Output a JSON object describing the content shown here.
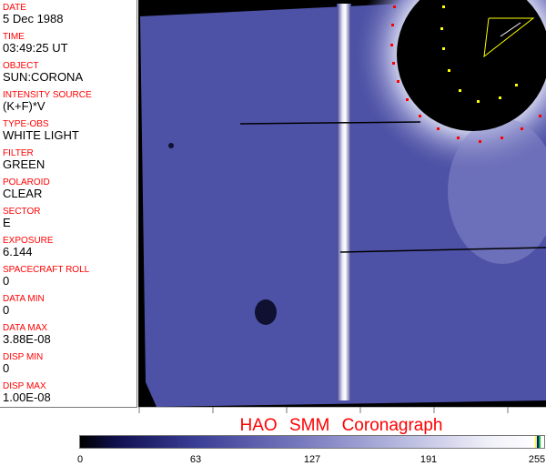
{
  "header_fields": [
    {
      "label": "DATE",
      "value": "5 Dec 1988"
    },
    {
      "label": "TIME",
      "value": "03:49:25 UT"
    },
    {
      "label": "OBJECT",
      "value": "SUN:CORONA"
    },
    {
      "label": "INTENSITY SOURCE",
      "value": "(K+F)*V"
    },
    {
      "label": "TYPE-OBS",
      "value": "WHITE LIGHT"
    },
    {
      "label": "FILTER",
      "value": "GREEN"
    },
    {
      "label": "POLAROID",
      "value": "CLEAR"
    },
    {
      "label": "SECTOR",
      "value": "E"
    },
    {
      "label": "EXPOSURE",
      "value": "6.144"
    },
    {
      "label": "SPACECRAFT ROLL",
      "value": "0"
    },
    {
      "label": "DATA MIN",
      "value": "0"
    },
    {
      "label": "DATA MAX",
      "value": "3.88E-08"
    },
    {
      "label": "DISP MIN",
      "value": "0"
    },
    {
      "label": "DISP MAX",
      "value": "1.00E-08"
    }
  ],
  "title": "HAO SMM Coronagraph",
  "colorbar": {
    "ticks": [
      "0",
      "63",
      "127",
      "191",
      "255"
    ],
    "colors": {
      "low": "#000000",
      "mid": "#7e80c2",
      "high": "#ffffff"
    }
  }
}
